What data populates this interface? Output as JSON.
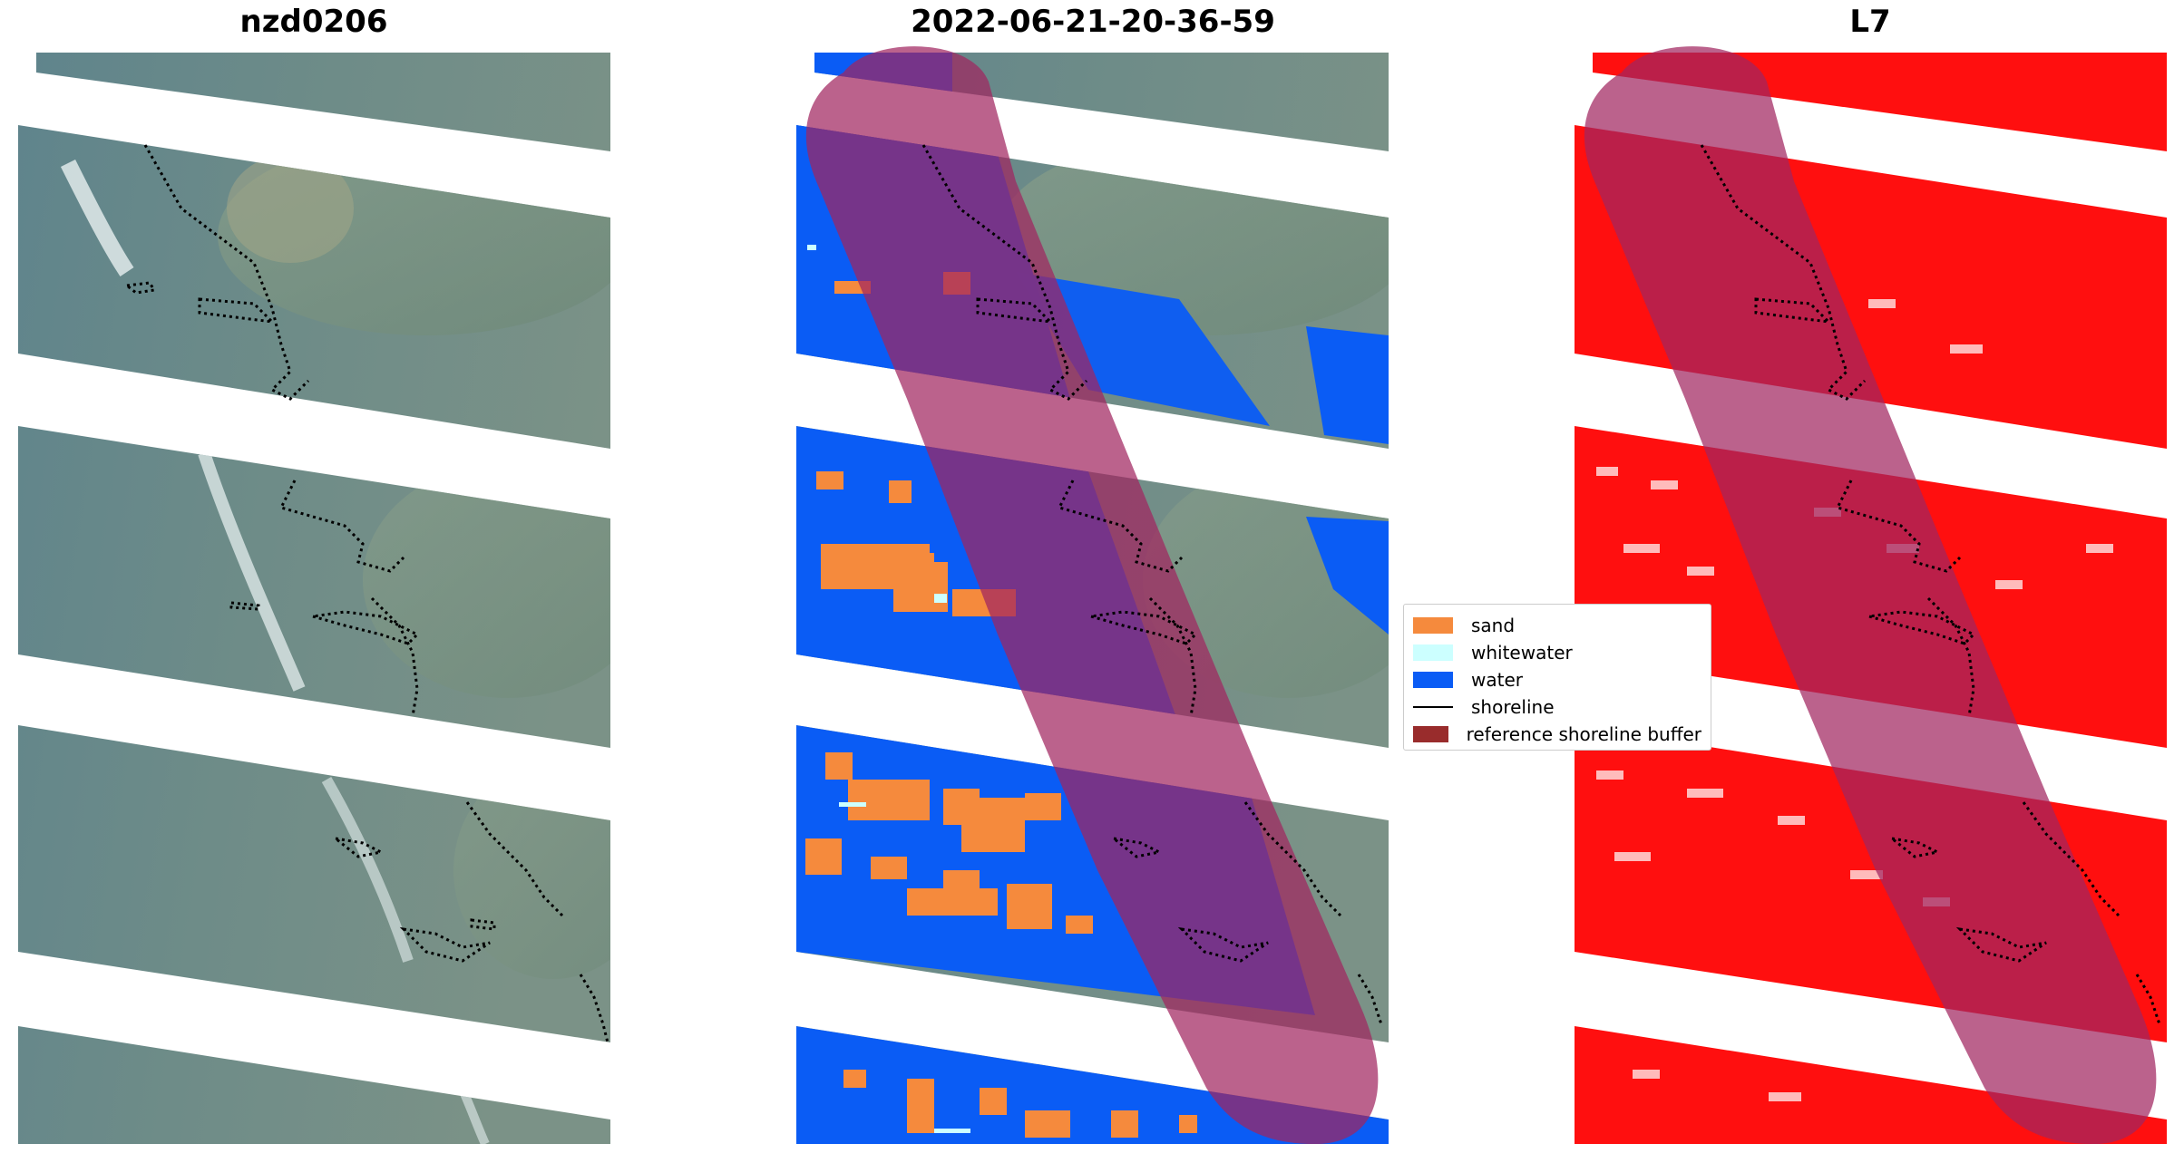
{
  "panels": [
    {
      "title": "nzd0206"
    },
    {
      "title": "2022-06-21-20-36-59"
    },
    {
      "title": "L7"
    }
  ],
  "legend": {
    "items": [
      {
        "label": "sand",
        "color": "#f58a3d",
        "kind": "patch"
      },
      {
        "label": "whitewater",
        "color": "#ccffff",
        "kind": "patch"
      },
      {
        "label": "water",
        "color": "#0a5cf5",
        "kind": "patch"
      },
      {
        "label": "shoreline",
        "color": "#000000",
        "kind": "line"
      },
      {
        "label": "reference shoreline buffer",
        "color": "#992c2c",
        "kind": "patch"
      }
    ]
  },
  "colors": {
    "imagery_dark": "#5a7e86",
    "imagery_light": "#7e9aa1",
    "imagery_land": "#6f8f80",
    "mask_red": "#ff0f0f",
    "buffer_overlay": "#a12660",
    "buffer_on_water": "#5022a0"
  }
}
